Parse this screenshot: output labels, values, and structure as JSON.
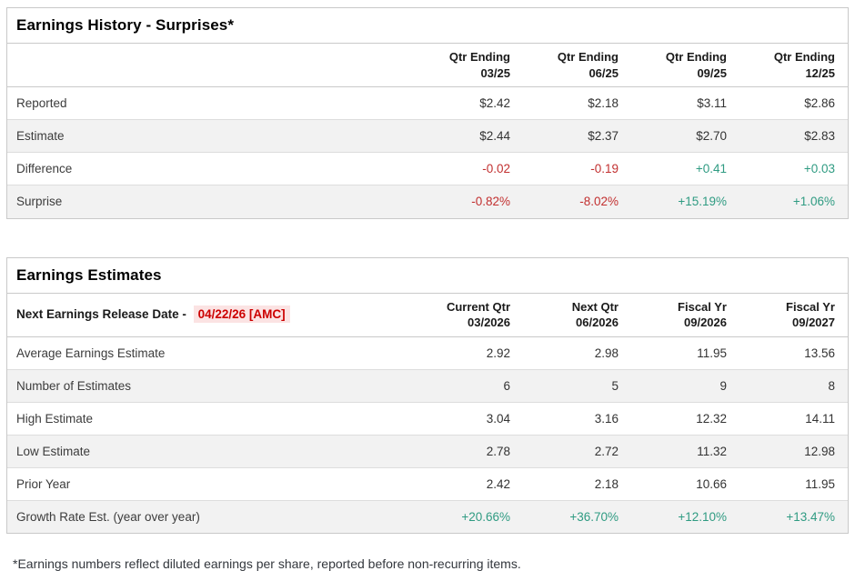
{
  "colors": {
    "negative_text": "#c23030",
    "positive_text": "#2f9b82",
    "release_date_text": "#cc0000",
    "release_date_bg": "#fbe3e3",
    "alt_row_bg": "#f2f2f2",
    "table_border": "#c9c9c9",
    "row_divider": "#dddddd",
    "title_text": "#000000",
    "body_text": "#333333"
  },
  "earnings_history": {
    "title": "Earnings History - Surprises*",
    "columns": [
      {
        "line1": "Qtr Ending",
        "line2": "03/25"
      },
      {
        "line1": "Qtr Ending",
        "line2": "06/25"
      },
      {
        "line1": "Qtr Ending",
        "line2": "09/25"
      },
      {
        "line1": "Qtr Ending",
        "line2": "12/25"
      }
    ],
    "rows": [
      {
        "label": "Reported",
        "values": [
          "$2.42",
          "$2.18",
          "$3.11",
          "$2.86"
        ]
      },
      {
        "label": "Estimate",
        "values": [
          "$2.44",
          "$2.37",
          "$2.70",
          "$2.83"
        ]
      },
      {
        "label": "Difference",
        "values": [
          "-0.02",
          "-0.19",
          "+0.41",
          "+0.03"
        ],
        "styles": [
          "neg",
          "neg",
          "pos",
          "pos"
        ]
      },
      {
        "label": "Surprise",
        "values": [
          "-0.82%",
          "-8.02%",
          "+15.19%",
          "+1.06%"
        ],
        "styles": [
          "neg",
          "neg",
          "pos",
          "pos"
        ]
      }
    ]
  },
  "earnings_estimates": {
    "title": "Earnings Estimates",
    "release_label": "Next Earnings Release Date - ",
    "release_date": "04/22/26 [AMC]",
    "columns": [
      {
        "line1": "Current Qtr",
        "line2": "03/2026"
      },
      {
        "line1": "Next Qtr",
        "line2": "06/2026"
      },
      {
        "line1": "Fiscal Yr",
        "line2": "09/2026"
      },
      {
        "line1": "Fiscal Yr",
        "line2": "09/2027"
      }
    ],
    "rows": [
      {
        "label": "Average Earnings Estimate",
        "values": [
          "2.92",
          "2.98",
          "11.95",
          "13.56"
        ]
      },
      {
        "label": "Number of Estimates",
        "values": [
          "6",
          "5",
          "9",
          "8"
        ]
      },
      {
        "label": "High Estimate",
        "values": [
          "3.04",
          "3.16",
          "12.32",
          "14.11"
        ]
      },
      {
        "label": "Low Estimate",
        "values": [
          "2.78",
          "2.72",
          "11.32",
          "12.98"
        ]
      },
      {
        "label": "Prior Year",
        "values": [
          "2.42",
          "2.18",
          "10.66",
          "11.95"
        ]
      },
      {
        "label": "Growth Rate Est. (year over year)",
        "values": [
          "+20.66%",
          "+36.70%",
          "+12.10%",
          "+13.47%"
        ],
        "styles": [
          "pos",
          "pos",
          "pos",
          "pos"
        ]
      }
    ]
  },
  "footnote": "*Earnings numbers reflect diluted earnings per share, reported before non-recurring items."
}
